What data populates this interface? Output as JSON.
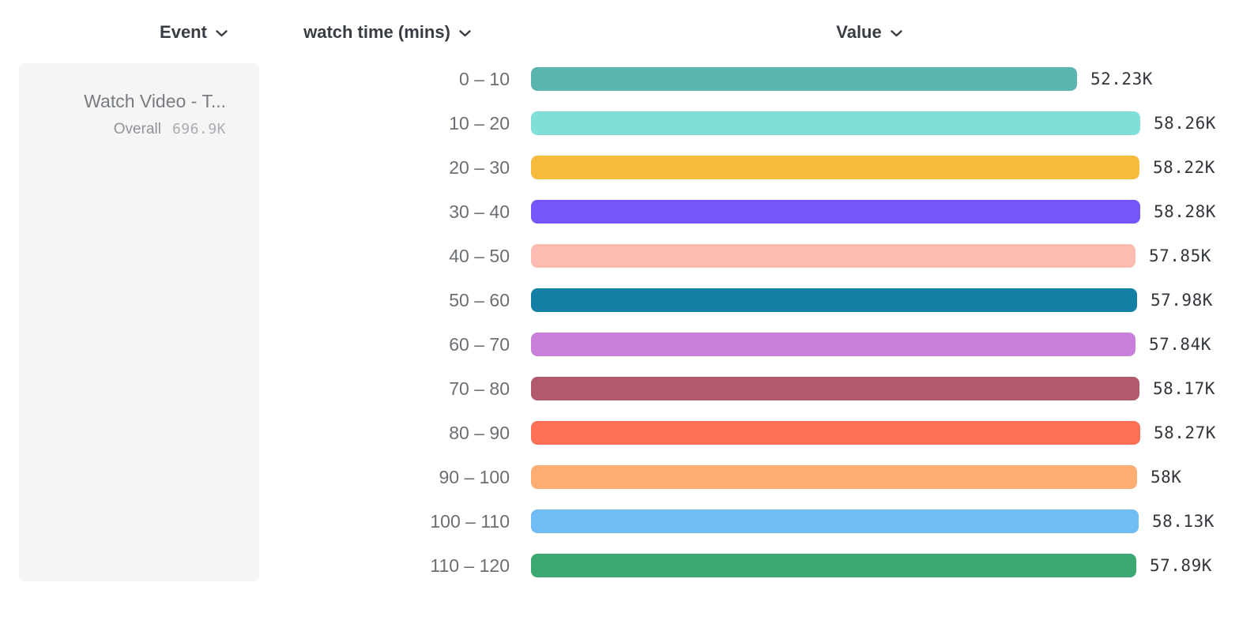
{
  "header": {
    "columns": [
      {
        "label": "Event",
        "icon": "chevron-down"
      },
      {
        "label": "watch time (mins)",
        "icon": "chevron-down"
      },
      {
        "label": "Value",
        "icon": "chevron-down"
      }
    ]
  },
  "event_card": {
    "title": "Watch Video - T...",
    "overall_label": "Overall",
    "overall_value": "696.9K"
  },
  "chart_data": {
    "type": "bar",
    "orientation": "horizontal",
    "title": "",
    "xlabel": "Value",
    "ylabel": "watch time (mins)",
    "xlim": [
      0,
      58280
    ],
    "grid": false,
    "legend": false,
    "categories": [
      "0 – 10",
      "10 – 20",
      "20 – 30",
      "30 – 40",
      "40 – 50",
      "50 – 60",
      "60 – 70",
      "70 – 80",
      "80 – 90",
      "90 – 100",
      "100 – 110",
      "110 – 120"
    ],
    "values": [
      52230,
      58260,
      58220,
      58280,
      57850,
      57980,
      57840,
      58170,
      58270,
      58000,
      58130,
      57890
    ],
    "value_labels": [
      "52.23K",
      "58.26K",
      "58.22K",
      "58.28K",
      "57.85K",
      "57.98K",
      "57.84K",
      "58.17K",
      "58.27K",
      "58K",
      "58.13K",
      "57.89K"
    ],
    "bar_colors": [
      "#59B5AE",
      "#80DFD6",
      "#F7BB3D",
      "#7656FA",
      "#FEBBB1",
      "#147FA3",
      "#C980DB",
      "#B15A6D",
      "#FE7156",
      "#FEAE75",
      "#71BCF4",
      "#3EA873"
    ]
  },
  "colors": {
    "header_text": "#383c43",
    "bucket_label_text": "#6b6f75",
    "value_label_text": "#33373d",
    "card_background": "#f5f5f6",
    "card_title_text": "#787c81"
  }
}
